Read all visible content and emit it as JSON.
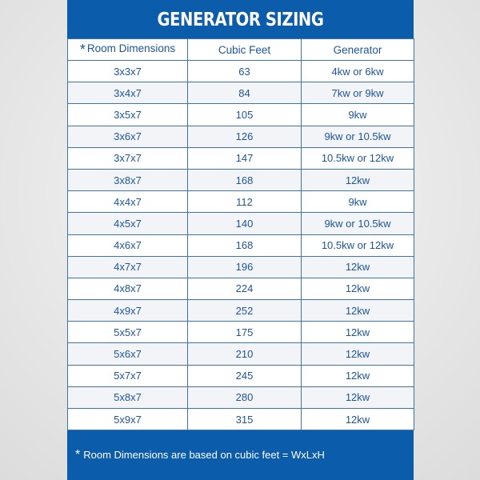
{
  "title": "GENERATOR SIZING",
  "headers": {
    "star": "*",
    "room": "Room Dimensions",
    "cubic": "Cubic Feet",
    "generator": "Generator"
  },
  "rows": [
    [
      "3x3x7",
      "63",
      "4kw or 6kw"
    ],
    [
      "3x4x7",
      "84",
      "7kw or 9kw"
    ],
    [
      "3x5x7",
      "105",
      "9kw"
    ],
    [
      "3x6x7",
      "126",
      "9kw or 10.5kw"
    ],
    [
      "3x7x7",
      "147",
      "10.5kw or 12kw"
    ],
    [
      "3x8x7",
      "168",
      "12kw"
    ],
    [
      "4x4x7",
      "112",
      "9kw"
    ],
    [
      "4x5x7",
      "140",
      "9kw or 10.5kw"
    ],
    [
      "4x6x7",
      "168",
      "10.5kw or 12kw"
    ],
    [
      "4x7x7",
      "196",
      "12kw"
    ],
    [
      "4x8x7",
      "224",
      "12kw"
    ],
    [
      "4x9x7",
      "252",
      "12kw"
    ],
    [
      "5x5x7",
      "175",
      "12kw"
    ],
    [
      "5x6x7",
      "210",
      "12kw"
    ],
    [
      "5x7x7",
      "245",
      "12kw"
    ],
    [
      "5x8x7",
      "280",
      "12kw"
    ],
    [
      "5x9x7",
      "315",
      "12kw"
    ]
  ],
  "footnote": {
    "star": "*",
    "text": "Room Dimensions are based on cubic feet = WxLxH"
  },
  "colors": {
    "brand_blue": "#0b5cab",
    "text_blue": "#1d56a0"
  }
}
